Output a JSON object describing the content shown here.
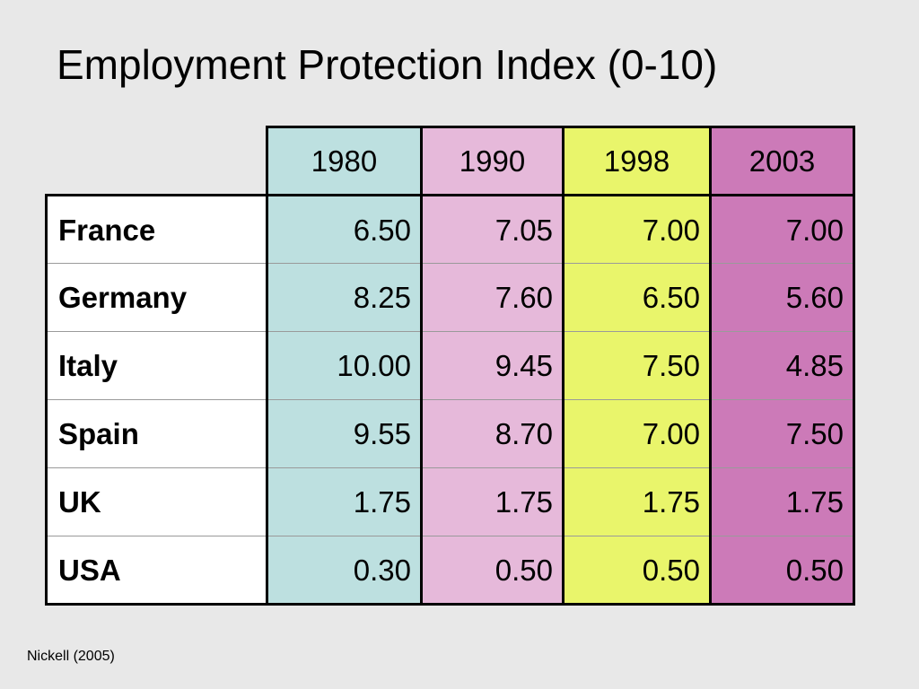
{
  "slide": {
    "title": "Employment Protection Index (0-10)",
    "source": "Nickell (2005)"
  },
  "chart_data": {
    "type": "table",
    "title": "Employment Protection Index (0-10)",
    "columns": [
      "1980",
      "1990",
      "1998",
      "2003"
    ],
    "column_colors": [
      "#bde0e0",
      "#e6b9da",
      "#e9f56b",
      "#cc7ab8"
    ],
    "rows": [
      {
        "label": "France",
        "values": [
          "6.50",
          "7.05",
          "7.00",
          "7.00"
        ]
      },
      {
        "label": "Germany",
        "values": [
          "8.25",
          "7.60",
          "6.50",
          "5.60"
        ]
      },
      {
        "label": "Italy",
        "values": [
          "10.00",
          "9.45",
          "7.50",
          "4.85"
        ]
      },
      {
        "label": "Spain",
        "values": [
          "9.55",
          "8.70",
          "7.00",
          "7.50"
        ]
      },
      {
        "label": "UK",
        "values": [
          "1.75",
          "1.75",
          "1.75",
          "1.75"
        ]
      },
      {
        "label": "USA",
        "values": [
          "0.30",
          "0.50",
          "0.50",
          "0.50"
        ]
      }
    ]
  }
}
